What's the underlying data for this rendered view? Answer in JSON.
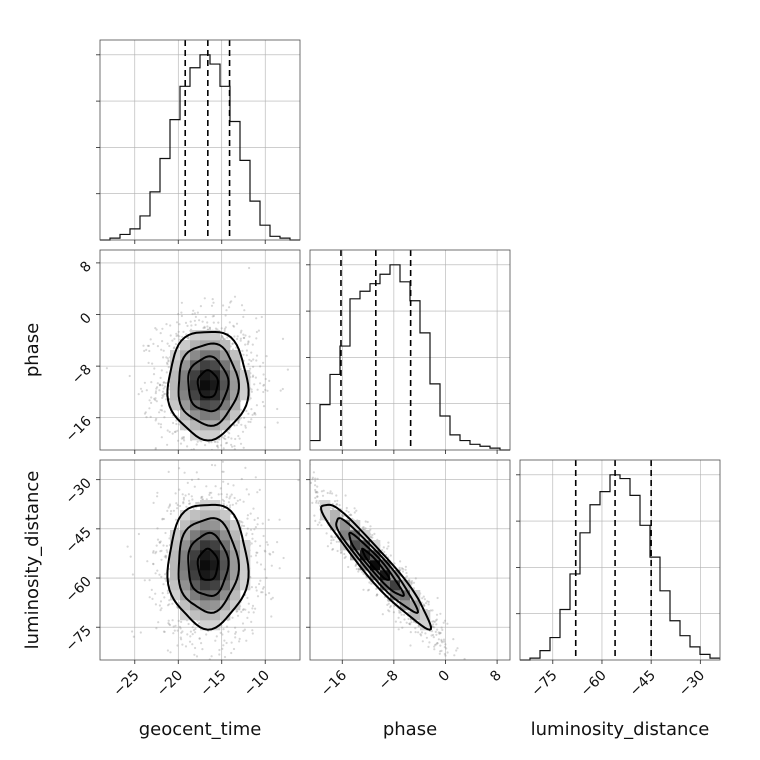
{
  "chart_data": {
    "type": "corner",
    "parameters": [
      "geocent_time",
      "phase",
      "luminosity_distance"
    ],
    "ranges": {
      "geocent_time": [
        -29,
        -6
      ],
      "phase": [
        -21,
        10
      ],
      "luminosity_distance": [
        -85,
        -24
      ]
    },
    "ticks": {
      "geocent_time": [
        -25,
        -20,
        -15,
        -10
      ],
      "phase": [
        -16,
        -8,
        0,
        8
      ],
      "luminosity_distance": [
        -75,
        -60,
        -45,
        -30
      ]
    },
    "grid": true,
    "quantiles": {
      "geocent_time": [
        -19.2,
        -16.6,
        -14.1
      ],
      "phase": [
        -16.2,
        -10.8,
        -5.4
      ],
      "luminosity_distance": [
        -68,
        -56,
        -45
      ]
    },
    "histograms": {
      "geocent_time": {
        "edges": [
          -29,
          -27.85,
          -26.7,
          -25.55,
          -24.4,
          -23.25,
          -22.1,
          -20.95,
          -19.8,
          -18.65,
          -17.5,
          -16.35,
          -15.2,
          -14.05,
          -12.9,
          -11.75,
          -10.6,
          -9.45,
          -8.3,
          -7.15,
          -6
        ],
        "counts": [
          0,
          0.01,
          0.03,
          0.06,
          0.13,
          0.26,
          0.44,
          0.65,
          0.83,
          0.93,
          1.0,
          0.95,
          0.83,
          0.64,
          0.43,
          0.21,
          0.08,
          0.02,
          0.01,
          0
        ]
      },
      "phase": {
        "edges": [
          -21,
          -19.45,
          -17.9,
          -16.35,
          -14.8,
          -13.25,
          -11.7,
          -10.15,
          -8.6,
          -7.05,
          -5.5,
          -3.95,
          -2.4,
          -0.85,
          0.7,
          2.25,
          3.8,
          5.35,
          6.9,
          8.45,
          10
        ],
        "counts": [
          0.05,
          0.24,
          0.4,
          0.55,
          0.8,
          0.84,
          0.88,
          0.93,
          0.98,
          0.89,
          0.79,
          0.62,
          0.35,
          0.18,
          0.08,
          0.05,
          0.03,
          0.02,
          0.01,
          0
        ]
      },
      "luminosity_distance": {
        "edges": [
          -85,
          -81.95,
          -78.9,
          -75.85,
          -72.8,
          -69.75,
          -66.7,
          -63.65,
          -60.6,
          -57.55,
          -54.5,
          -51.45,
          -48.4,
          -45.35,
          -42.3,
          -39.25,
          -36.2,
          -33.15,
          -30.1,
          -27.05,
          -24
        ],
        "counts": [
          0,
          0.01,
          0.05,
          0.12,
          0.27,
          0.46,
          0.68,
          0.83,
          0.9,
          0.99,
          0.97,
          0.88,
          0.72,
          0.55,
          0.37,
          0.21,
          0.13,
          0.07,
          0.03,
          0.01
        ]
      }
    },
    "pairs": [
      {
        "x": "geocent_time",
        "y": "phase",
        "mean": [
          -16.6,
          -10.8
        ],
        "sd": [
          2.3,
          4.2
        ],
        "corr": 0.0
      },
      {
        "x": "geocent_time",
        "y": "luminosity_distance",
        "mean": [
          -16.6,
          -56
        ],
        "sd": [
          2.3,
          9.5
        ],
        "corr": 0.0
      },
      {
        "x": "phase",
        "y": "luminosity_distance",
        "mean": [
          -10.8,
          -56
        ],
        "sd": [
          4.2,
          9.5
        ],
        "corr": -0.95
      }
    ]
  }
}
